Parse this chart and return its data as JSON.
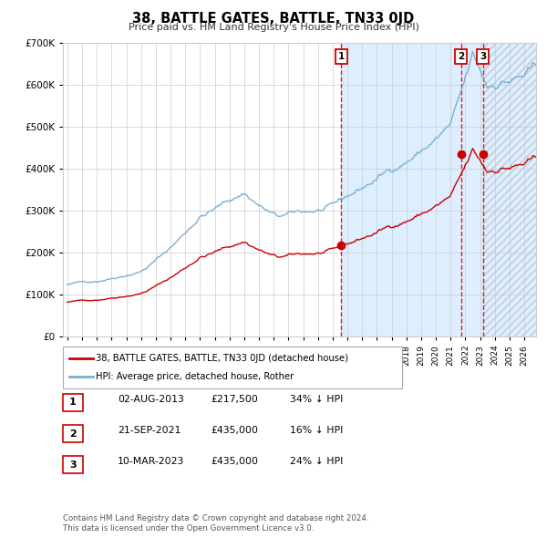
{
  "title": "38, BATTLE GATES, BATTLE, TN33 0JD",
  "subtitle": "Price paid vs. HM Land Registry's House Price Index (HPI)",
  "legend_line1": "38, BATTLE GATES, BATTLE, TN33 0JD (detached house)",
  "legend_line2": "HPI: Average price, detached house, Rother",
  "footer1": "Contains HM Land Registry data © Crown copyright and database right 2024.",
  "footer2": "This data is licensed under the Open Government Licence v3.0.",
  "sale_dates_num": [
    2013.583,
    2021.722,
    2023.192
  ],
  "sale_prices": [
    217500,
    435000,
    435000
  ],
  "sale_labels": [
    "1",
    "2",
    "3"
  ],
  "table_rows": [
    [
      "1",
      "02-AUG-2013",
      "£217,500",
      "34% ↓ HPI"
    ],
    [
      "2",
      "21-SEP-2021",
      "£435,000",
      "16% ↓ HPI"
    ],
    [
      "3",
      "10-MAR-2023",
      "£435,000",
      "24% ↓ HPI"
    ]
  ],
  "ylim": [
    0,
    700000
  ],
  "xlim_start": 1994.7,
  "xlim_end": 2026.8,
  "line_color_property": "#cc0000",
  "line_color_hpi": "#7ab0d4",
  "background_color": "#ffffff",
  "shaded_region_color": "#ddeeff",
  "grid_color": "#cccccc",
  "dashed_line_color": "#cc0000"
}
